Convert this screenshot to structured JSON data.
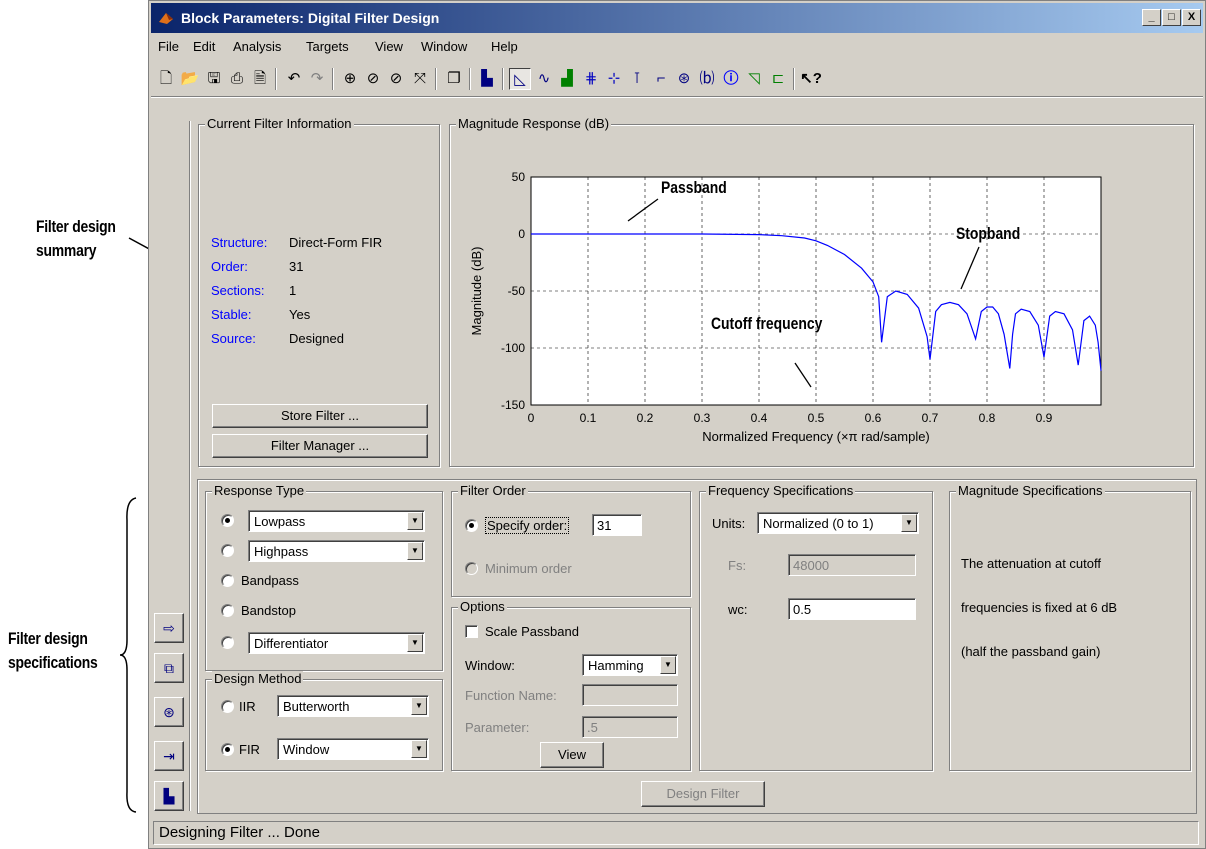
{
  "annotations": {
    "summary_line1": "Filter design",
    "summary_line2": "summary",
    "specs_line1": "Filter design",
    "specs_line2": "specifications"
  },
  "window": {
    "title": "Block Parameters: Digital Filter Design",
    "controls": [
      "_",
      "□",
      "X"
    ]
  },
  "menu": [
    "File",
    "Edit",
    "Analysis",
    "Targets",
    "View",
    "Window",
    "Help"
  ],
  "toolbar": {
    "icons": [
      "new-icon",
      "open-icon",
      "save-icon",
      "print-icon",
      "print-preview-icon",
      "undo-icon",
      "redo-icon",
      "zoom-in-icon",
      "zoom-x-icon",
      "zoom-y-icon",
      "full-view-icon",
      "new-figure-icon",
      "filter-design-icon",
      "magnitude-response-icon",
      "phase-response-icon",
      "magnitude-phase-icon",
      "group-delay-icon",
      "phase-delay-icon",
      "impulse-response-icon",
      "step-response-icon",
      "pole-zero-icon",
      "coefficients-icon",
      "info-icon",
      "magnitude-estimate-icon",
      "noise-power-icon",
      "whats-this-icon"
    ]
  },
  "current_filter": {
    "title": "Current Filter Information",
    "rows": [
      {
        "label": "Structure:",
        "value": "Direct-Form FIR"
      },
      {
        "label": "Order:",
        "value": "31"
      },
      {
        "label": "Sections:",
        "value": "1"
      },
      {
        "label": "Stable:",
        "value": "Yes"
      },
      {
        "label": "Source:",
        "value": "Designed"
      }
    ],
    "store_button": "Store Filter ...",
    "manager_button": "Filter Manager ..."
  },
  "chart_data": {
    "type": "line",
    "title": "Magnitude Response (dB)",
    "xlabel": "Normalized Frequency (×π rad/sample)",
    "ylabel": "Magnitude (dB)",
    "xlim": [
      0,
      1
    ],
    "ylim": [
      -150,
      50
    ],
    "xticks": [
      "0",
      "0.1",
      "0.2",
      "0.3",
      "0.4",
      "0.5",
      "0.6",
      "0.7",
      "0.8",
      "0.9"
    ],
    "yticks": [
      "50",
      "0",
      "-50",
      "-100",
      "-150"
    ],
    "grid": true,
    "series": [
      {
        "color": "#0000ff",
        "x": [
          0,
          0.1,
          0.2,
          0.3,
          0.4,
          0.44,
          0.48,
          0.5,
          0.52,
          0.55,
          0.58,
          0.6,
          0.61,
          0.615,
          0.625,
          0.64,
          0.66,
          0.68,
          0.695,
          0.7,
          0.71,
          0.72,
          0.735,
          0.75,
          0.765,
          0.78,
          0.79,
          0.8,
          0.81,
          0.82,
          0.83,
          0.84,
          0.845,
          0.85,
          0.86,
          0.875,
          0.89,
          0.9,
          0.91,
          0.92,
          0.935,
          0.95,
          0.96,
          0.97,
          0.98,
          0.99,
          0.995,
          1.0
        ],
        "y": [
          0,
          0,
          0,
          0,
          -0.5,
          -1.5,
          -3.5,
          -6,
          -10,
          -18,
          -30,
          -42,
          -55,
          -95,
          -55,
          -50,
          -53,
          -65,
          -90,
          -110,
          -68,
          -62,
          -60,
          -62,
          -70,
          -92,
          -68,
          -64,
          -64,
          -70,
          -88,
          -118,
          -88,
          -70,
          -66,
          -68,
          -80,
          -108,
          -72,
          -68,
          -70,
          -84,
          -115,
          -76,
          -72,
          -80,
          -95,
          -120
        ]
      }
    ],
    "annotations": [
      "Passband",
      "Stopband",
      "Cutoff frequency"
    ]
  },
  "response_type": {
    "title": "Response Type",
    "options": [
      {
        "label": "Lowpass",
        "selected": true,
        "dropdown": true
      },
      {
        "label": "Highpass",
        "selected": false,
        "dropdown": true
      },
      {
        "label": "Bandpass",
        "selected": false,
        "dropdown": false
      },
      {
        "label": "Bandstop",
        "selected": false,
        "dropdown": false
      },
      {
        "label": "Differentiator",
        "selected": false,
        "dropdown": true
      }
    ]
  },
  "design_method": {
    "title": "Design Method",
    "iir_label": "IIR",
    "iir_value": "Butterworth",
    "fir_label": "FIR",
    "fir_value": "Window"
  },
  "filter_order": {
    "title": "Filter Order",
    "specify_label": "Specify order:",
    "specify_value": "31",
    "minimum_label": "Minimum order"
  },
  "options": {
    "title": "Options",
    "scale_passband": "Scale Passband",
    "window_label": "Window:",
    "window_value": "Hamming",
    "function_label": "Function Name:",
    "function_value": "",
    "parameter_label": "Parameter:",
    "parameter_value": ".5",
    "view_button": "View"
  },
  "freq_specs": {
    "title": "Frequency Specifications",
    "units_label": "Units:",
    "units_value": "Normalized (0 to 1)",
    "fs_label": "Fs:",
    "fs_value": "48000",
    "wc_label": "wc:",
    "wc_value": "0.5"
  },
  "mag_specs": {
    "title": "Magnitude Specifications",
    "line1": "The attenuation at cutoff",
    "line2": "frequencies is fixed at 6 dB",
    "line3": "(half the passband gain)"
  },
  "design_button": "Design Filter",
  "status": "Designing Filter ... Done"
}
